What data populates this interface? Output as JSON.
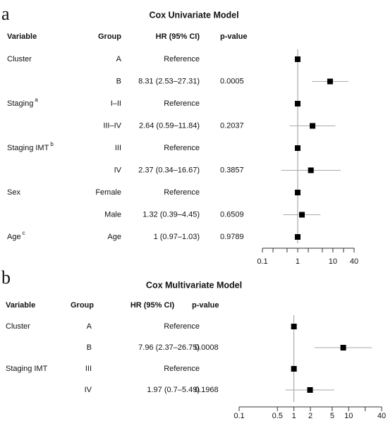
{
  "chart_data": [
    {
      "type": "forest",
      "panel": "a",
      "title": "Cox Univariate Model",
      "columns": [
        "Variable",
        "Group",
        "HR (95% CI)",
        "p-value"
      ],
      "variables": [
        "Cluster",
        null,
        "Staging",
        null,
        "Staging IMT",
        null,
        "Sex",
        null,
        "Age"
      ],
      "variable_notes": [
        null,
        null,
        "a",
        null,
        "b",
        null,
        null,
        null,
        "c"
      ],
      "groups": [
        "A",
        "B",
        "I–II",
        "III–IV",
        "III",
        "IV",
        "Female",
        "Male",
        "Age"
      ],
      "hr_labels": [
        "Reference",
        "8.31 (2.53–27.31)",
        "Reference",
        "2.64 (0.59–11.84)",
        "Reference",
        "2.37 (0.34–16.67)",
        "Reference",
        "1.32 (0.39–4.45)",
        "1 (0.97–1.03)"
      ],
      "p_values": [
        null,
        0.0005,
        null,
        0.2037,
        null,
        0.3857,
        null,
        0.6509,
        0.9789
      ],
      "values": [
        1,
        8.31,
        1,
        2.64,
        1,
        2.37,
        1,
        1.32,
        1
      ],
      "lower": [
        null,
        2.53,
        null,
        0.59,
        null,
        0.34,
        null,
        0.39,
        0.97
      ],
      "upper": [
        null,
        27.31,
        null,
        11.84,
        null,
        16.67,
        null,
        4.45,
        1.03
      ],
      "xscale": "log",
      "xlim": [
        0.1,
        40
      ],
      "xticks": [
        0.1,
        1,
        10,
        40
      ],
      "minor_xticks": [
        0.2,
        0.5,
        2,
        5,
        20
      ],
      "reference_line": 1,
      "marker_color": "#000000",
      "ci_color": "#aaaaaa"
    },
    {
      "type": "forest",
      "panel": "b",
      "title": "Cox Multivariate Model",
      "columns": [
        "Variable",
        "Group",
        "HR (95% CI)",
        "p-value"
      ],
      "variables": [
        "Cluster",
        null,
        "Staging IMT",
        null
      ],
      "variable_notes": [
        null,
        null,
        null,
        null
      ],
      "groups": [
        "A",
        "B",
        "III",
        "IV"
      ],
      "hr_labels": [
        "Reference",
        "7.96 (2.37–26.75)",
        "Reference",
        "1.97 (0.7–5.49)"
      ],
      "p_values": [
        null,
        0.0008,
        null,
        0.1968
      ],
      "values": [
        1,
        7.96,
        1,
        1.97
      ],
      "lower": [
        null,
        2.37,
        null,
        0.7
      ],
      "upper": [
        null,
        26.75,
        null,
        5.49
      ],
      "xscale": "log",
      "xlim": [
        0.1,
        40
      ],
      "xticks": [
        0.1,
        0.5,
        1,
        2,
        5,
        10,
        40
      ],
      "minor_xticks": [
        20
      ],
      "reference_line": 1,
      "marker_color": "#000000",
      "ci_color": "#aaaaaa"
    }
  ]
}
